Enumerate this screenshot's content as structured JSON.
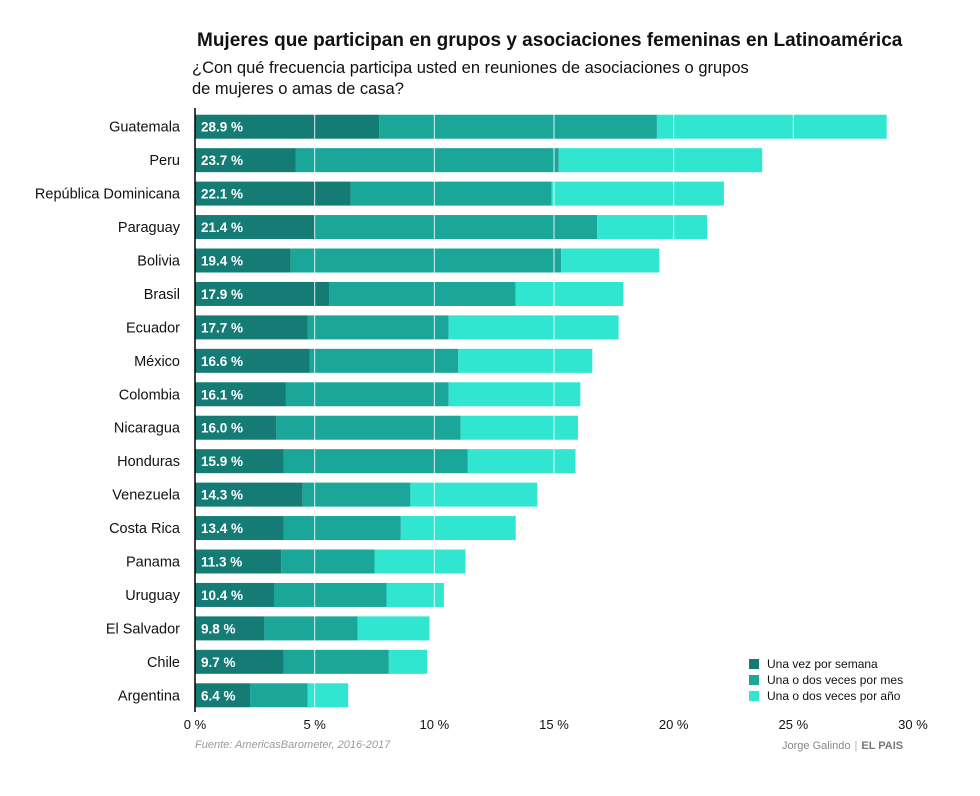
{
  "title": "Mujeres que participan en grupos y asociaciones femeninas en Latinoamérica",
  "subtitle": "¿Con qué frecuencia participa usted en reuniones de asociaciones o grupos de mujeres o amas de casa?",
  "source": "Fuente: AmericasBarometer, 2016-2017",
  "credit": {
    "author": "Jorge Galindo",
    "outlet": "EL PAIS"
  },
  "colors": {
    "weekly": "#147c74",
    "monthly": "#1aa698",
    "yearly": "#30e6d0",
    "axis": "#000000"
  },
  "chart_data": {
    "type": "bar",
    "orientation": "horizontal",
    "stacked": true,
    "categories": [
      "Guatemala",
      "Peru",
      "República Dominicana",
      "Paraguay",
      "Bolivia",
      "Brasil",
      "Ecuador",
      "México",
      "Colombia",
      "Nicaragua",
      "Honduras",
      "Venezuela",
      "Costa Rica",
      "Panama",
      "Uruguay",
      "El Salvador",
      "Chile",
      "Argentina"
    ],
    "totals": [
      28.9,
      23.7,
      22.1,
      21.4,
      19.4,
      17.9,
      17.7,
      16.6,
      16.1,
      16.0,
      15.9,
      14.3,
      13.4,
      11.3,
      10.4,
      9.8,
      9.7,
      6.4
    ],
    "total_labels": [
      "28.9 %",
      "23.7 %",
      "22.1 %",
      "21.4 %",
      "19.4 %",
      "17.9 %",
      "17.7 %",
      "16.6 %",
      "16.1 %",
      "16.0 %",
      "15.9 %",
      "14.3 %",
      "13.4 %",
      "11.3 %",
      "10.4 %",
      "9.8 %",
      "9.7 %",
      "6.4 %"
    ],
    "series": [
      {
        "name": "Una vez por semana",
        "values": [
          7.7,
          4.2,
          6.5,
          5.0,
          4.0,
          5.6,
          4.7,
          4.8,
          3.8,
          3.4,
          3.7,
          4.5,
          3.7,
          3.6,
          3.3,
          2.9,
          3.7,
          2.3
        ]
      },
      {
        "name": "Una o dos veces por mes",
        "values": [
          11.6,
          11.0,
          8.4,
          11.8,
          11.3,
          7.8,
          5.9,
          6.2,
          6.8,
          7.7,
          7.7,
          4.5,
          4.9,
          3.9,
          4.7,
          3.9,
          4.4,
          2.4
        ]
      },
      {
        "name": "Una o dos veces por año",
        "values": [
          9.6,
          8.5,
          7.2,
          4.6,
          4.1,
          4.5,
          7.1,
          5.6,
          5.5,
          4.9,
          4.5,
          5.3,
          4.8,
          3.8,
          2.4,
          3.0,
          1.6,
          1.7
        ]
      }
    ],
    "xlim": [
      0,
      30
    ],
    "xticks": [
      "0 %",
      "5 %",
      "10 %",
      "15 %",
      "20 %",
      "25 %",
      "30 %"
    ],
    "grid": "vertical lines over bars",
    "legend_position": "bottom-right"
  }
}
